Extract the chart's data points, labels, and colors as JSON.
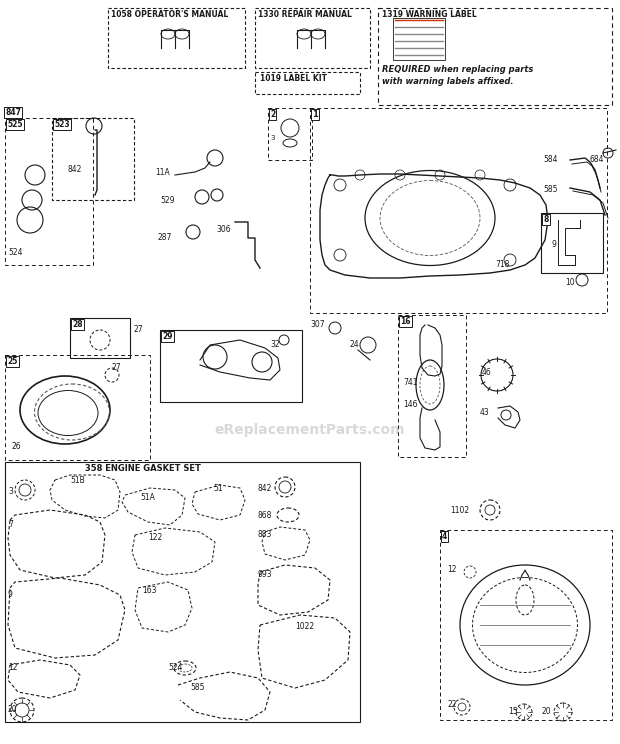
{
  "bg_color": "#f5f5f5",
  "watermark": "eReplacementParts.com",
  "fig_w": 6.2,
  "fig_h": 7.44,
  "dpi": 100,
  "top": {
    "box1_label": "1058 OPERATOR'S MANUAL",
    "box2_label": "1330 REPAIR MANUAL",
    "box3_label": "1319 WARNING LABEL",
    "box4_label": "1019 LABEL KIT",
    "required": "REQUIRED when replacing parts\nwith warning labels affixed."
  }
}
